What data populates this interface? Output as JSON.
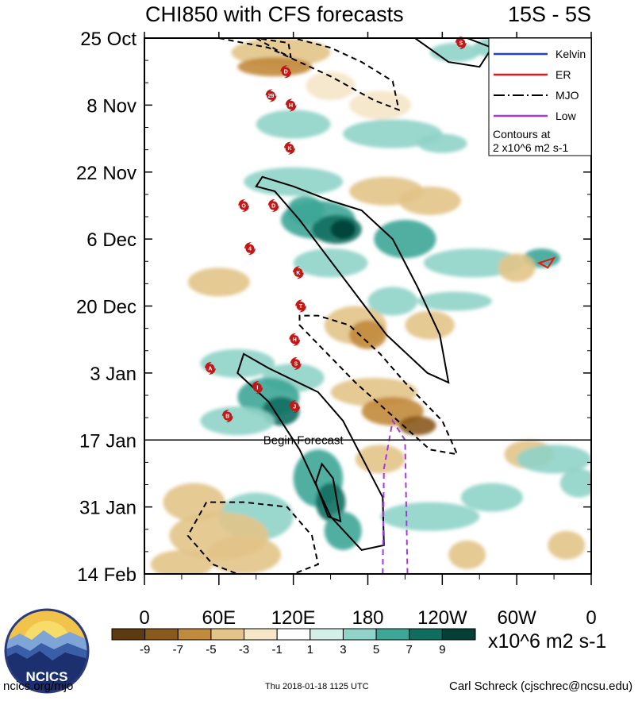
{
  "chart_data": {
    "type": "heatmap",
    "title": "CHI850 with CFS forecasts",
    "region": "15S - 5S",
    "x_ticks": [
      "0",
      "60E",
      "120E",
      "180",
      "120W",
      "60W",
      "0"
    ],
    "x_range_deg": [
      0,
      360
    ],
    "y_ticks": [
      "25 Oct",
      "8 Nov",
      "22 Nov",
      "6 Dec",
      "20 Dec",
      "3 Jan",
      "17 Jan",
      "31 Jan",
      "14 Feb"
    ],
    "y_range_days": [
      0,
      112
    ],
    "forecast_start_day": 84,
    "forecast_label": "Begin Forecast",
    "legend": {
      "items": [
        {
          "name": "Kelvin",
          "color": "#1f3fd6",
          "style": "solid"
        },
        {
          "name": "ER",
          "color": "#e81919",
          "style": "solid"
        },
        {
          "name": "MJO",
          "color": "#000000",
          "style": "dash-dot"
        },
        {
          "name": "Low",
          "color": "#a63ad6",
          "style": "solid"
        }
      ],
      "note_line1": "Contours at",
      "note_line2": "2 x10^6 m2 s-1"
    },
    "colorbar": {
      "labels": [
        "-9",
        "-7",
        "-5",
        "-3",
        "-1",
        "1",
        "3",
        "5",
        "7",
        "9"
      ],
      "colors": [
        "#5e3a10",
        "#8a5a1c",
        "#c28a3c",
        "#e2c488",
        "#f5e6c8",
        "#ffffff",
        "#d4efe8",
        "#8fd3c8",
        "#3ea697",
        "#0e6e60",
        "#053f35"
      ],
      "units": "x10^6 m2 s-1"
    },
    "storms": [
      {
        "label": "S",
        "lon": 255,
        "day": 1
      },
      {
        "label": "D",
        "lon": 114,
        "day": 7
      },
      {
        "label": "29",
        "lon": 102,
        "day": 12
      },
      {
        "label": "H",
        "lon": 118,
        "day": 14
      },
      {
        "label": "K",
        "lon": 117,
        "day": 23
      },
      {
        "label": "O",
        "lon": 80,
        "day": 35
      },
      {
        "label": "D",
        "lon": 104,
        "day": 35
      },
      {
        "label": "4",
        "lon": 85,
        "day": 44
      },
      {
        "label": "K",
        "lon": 124,
        "day": 49
      },
      {
        "label": "T",
        "lon": 126,
        "day": 56
      },
      {
        "label": "H",
        "lon": 121,
        "day": 63
      },
      {
        "label": "S",
        "lon": 122,
        "day": 68
      },
      {
        "label": "A",
        "lon": 53,
        "day": 69
      },
      {
        "label": "I",
        "lon": 91,
        "day": 73
      },
      {
        "label": "J",
        "lon": 121,
        "day": 77
      },
      {
        "label": "B",
        "lon": 67,
        "day": 79
      }
    ],
    "contours": {
      "mjo_positive": [
        [
          [
            90,
            31
          ],
          [
            105,
            32
          ],
          [
            125,
            38
          ],
          [
            160,
            50
          ],
          [
            195,
            62
          ],
          [
            228,
            70
          ],
          [
            245,
            72
          ],
          [
            238,
            62
          ],
          [
            220,
            52
          ],
          [
            200,
            42
          ],
          [
            175,
            36
          ],
          [
            150,
            34
          ],
          [
            120,
            31
          ],
          [
            95,
            29
          ]
        ],
        [
          [
            218,
            0
          ],
          [
            245,
            5
          ],
          [
            270,
            6
          ],
          [
            280,
            2
          ],
          [
            260,
            0
          ]
        ],
        [
          [
            75,
            70
          ],
          [
            100,
            76
          ],
          [
            125,
            86
          ],
          [
            150,
            100
          ],
          [
            175,
            107
          ],
          [
            193,
            106
          ],
          [
            192,
            96
          ],
          [
            160,
            80
          ],
          [
            140,
            74
          ],
          [
            100,
            69
          ],
          [
            80,
            66
          ]
        ],
        [
          [
            138,
            93
          ],
          [
            148,
            100
          ],
          [
            158,
            101
          ],
          [
            152,
            92
          ],
          [
            143,
            89
          ]
        ]
      ],
      "mjo_negative": [
        [
          [
            60,
            0
          ],
          [
            100,
            2
          ],
          [
            150,
            8
          ],
          [
            185,
            13
          ],
          [
            205,
            15
          ],
          [
            200,
            9
          ],
          [
            175,
            5
          ],
          [
            150,
            2
          ],
          [
            120,
            0
          ]
        ],
        [
          [
            90,
            0
          ],
          [
            110,
            3
          ],
          [
            118,
            4
          ],
          [
            116,
            1
          ]
        ],
        [
          [
            125,
            60
          ],
          [
            170,
            72
          ],
          [
            230,
            86
          ],
          [
            252,
            87
          ],
          [
            240,
            80
          ],
          [
            210,
            72
          ],
          [
            190,
            66
          ],
          [
            165,
            60
          ],
          [
            140,
            58
          ],
          [
            125,
            58
          ]
        ],
        [
          [
            35,
            104
          ],
          [
            55,
            110
          ],
          [
            75,
            112
          ],
          [
            120,
            112
          ],
          [
            140,
            110
          ],
          [
            135,
            104
          ],
          [
            115,
            98
          ],
          [
            80,
            97
          ],
          [
            50,
            97
          ]
        ]
      ],
      "er_positive": [
        [
          [
            318,
            47
          ],
          [
            330,
            46
          ],
          [
            325,
            48
          ]
        ]
      ],
      "low_negative": [
        [
          [
            192,
            112
          ],
          [
            193,
            90
          ],
          [
            200,
            80
          ],
          [
            210,
            84
          ],
          [
            212,
            112
          ]
        ]
      ]
    }
  },
  "footer": {
    "left": "ncics.org/mjo",
    "center": "Thu 2018-01-18 1125 UTC",
    "right": "Carl Schreck (cjschrec@ncsu.edu)",
    "logo_text": "NCICS"
  }
}
